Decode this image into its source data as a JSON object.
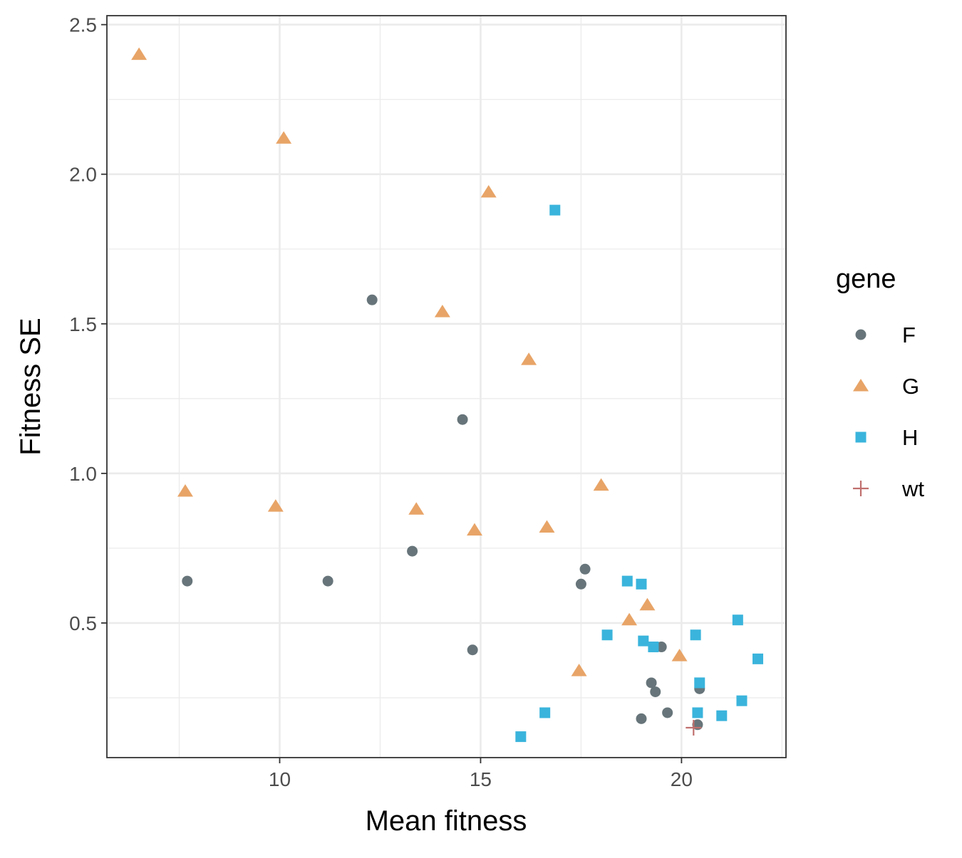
{
  "chart_data": {
    "type": "scatter",
    "xlabel": "Mean fitness",
    "ylabel": "Fitness SE",
    "xlim": [
      5.7,
      22.6
    ],
    "ylim": [
      0.05,
      2.53
    ],
    "x_major_ticks": [
      10,
      15,
      20
    ],
    "x_tick_labels": [
      "10",
      "15",
      "20"
    ],
    "y_major_ticks": [
      0.5,
      1.0,
      1.5,
      2.0,
      2.5
    ],
    "y_tick_labels": [
      "0.5",
      "1.0",
      "1.5",
      "2.0",
      "2.5"
    ],
    "grid": true,
    "legend": {
      "title": "gene",
      "placement": "right"
    },
    "series": [
      {
        "name": "F",
        "shape": "circle",
        "color": "#67757a",
        "points": [
          [
            7.7,
            0.64
          ],
          [
            11.2,
            0.64
          ],
          [
            12.3,
            1.58
          ],
          [
            13.3,
            0.74
          ],
          [
            14.55,
            1.18
          ],
          [
            14.8,
            0.41
          ],
          [
            17.5,
            0.63
          ],
          [
            17.6,
            0.68
          ],
          [
            19.0,
            0.18
          ],
          [
            19.25,
            0.3
          ],
          [
            19.35,
            0.27
          ],
          [
            19.5,
            0.42
          ],
          [
            19.65,
            0.2
          ],
          [
            20.4,
            0.16
          ],
          [
            20.45,
            0.28
          ]
        ]
      },
      {
        "name": "G",
        "shape": "triangle",
        "color": "#e8a467",
        "points": [
          [
            6.5,
            2.4
          ],
          [
            7.65,
            0.94
          ],
          [
            9.9,
            0.89
          ],
          [
            10.1,
            2.12
          ],
          [
            13.4,
            0.88
          ],
          [
            14.05,
            1.54
          ],
          [
            14.85,
            0.81
          ],
          [
            15.2,
            1.94
          ],
          [
            16.2,
            1.38
          ],
          [
            16.65,
            0.82
          ],
          [
            17.45,
            0.34
          ],
          [
            18.0,
            0.96
          ],
          [
            18.7,
            0.51
          ],
          [
            19.15,
            0.56
          ],
          [
            19.95,
            0.39
          ]
        ]
      },
      {
        "name": "H",
        "shape": "square",
        "color": "#3ab4dc",
        "points": [
          [
            16.0,
            0.12
          ],
          [
            16.6,
            0.2
          ],
          [
            16.85,
            1.88
          ],
          [
            18.15,
            0.46
          ],
          [
            18.65,
            0.64
          ],
          [
            19.0,
            0.63
          ],
          [
            19.05,
            0.44
          ],
          [
            19.3,
            0.42
          ],
          [
            20.35,
            0.46
          ],
          [
            20.4,
            0.2
          ],
          [
            20.45,
            0.3
          ],
          [
            21.0,
            0.19
          ],
          [
            21.4,
            0.51
          ],
          [
            21.5,
            0.24
          ],
          [
            21.9,
            0.38
          ]
        ]
      },
      {
        "name": "wt",
        "shape": "plus",
        "color": "#c0706e",
        "points": [
          [
            20.3,
            0.15
          ]
        ]
      }
    ]
  }
}
